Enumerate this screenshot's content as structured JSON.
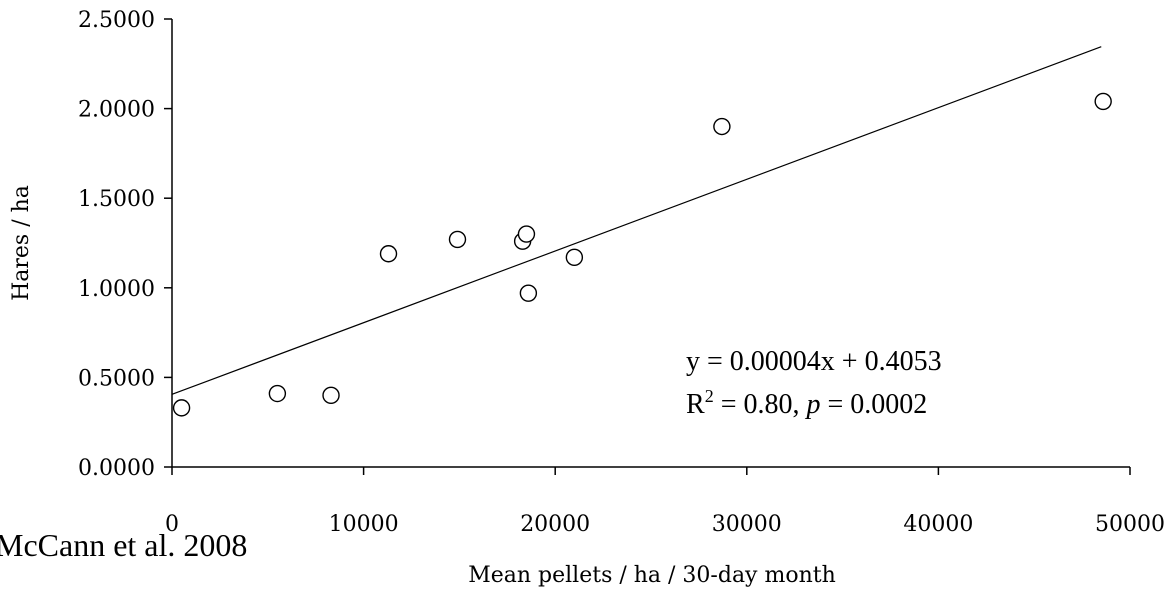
{
  "chart_data": {
    "type": "scatter",
    "xlabel": "Mean pellets / ha / 30-day month",
    "ylabel": "Hares / ha",
    "xlim": [
      0,
      50000
    ],
    "ylim": [
      0,
      2.5
    ],
    "x_ticks": [
      "0",
      "10000",
      "20000",
      "30000",
      "40000",
      "50000"
    ],
    "y_ticks": [
      "0.0000",
      "0.5000",
      "1.0000",
      "1.5000",
      "2.0000",
      "2.5000"
    ],
    "points": [
      {
        "x": 500,
        "y": 0.33
      },
      {
        "x": 5500,
        "y": 0.41
      },
      {
        "x": 8300,
        "y": 0.4
      },
      {
        "x": 11300,
        "y": 1.19
      },
      {
        "x": 14900,
        "y": 1.27
      },
      {
        "x": 18300,
        "y": 1.26
      },
      {
        "x": 18500,
        "y": 1.3
      },
      {
        "x": 18600,
        "y": 0.97
      },
      {
        "x": 21000,
        "y": 1.17
      },
      {
        "x": 28700,
        "y": 1.9
      },
      {
        "x": 48600,
        "y": 2.04
      }
    ],
    "trendline": {
      "slope": 4e-05,
      "intercept": 0.4053,
      "x_range": [
        0,
        48500
      ]
    },
    "equation": "y = 0.00004x + 0.4053",
    "r2_prefix": "R",
    "r2_sup": "2",
    "r2_mid": " = 0.80, ",
    "p_symbol": "p",
    "p_value": " = 0.0002",
    "grid": false
  },
  "credit": "McCann et al. 2008"
}
